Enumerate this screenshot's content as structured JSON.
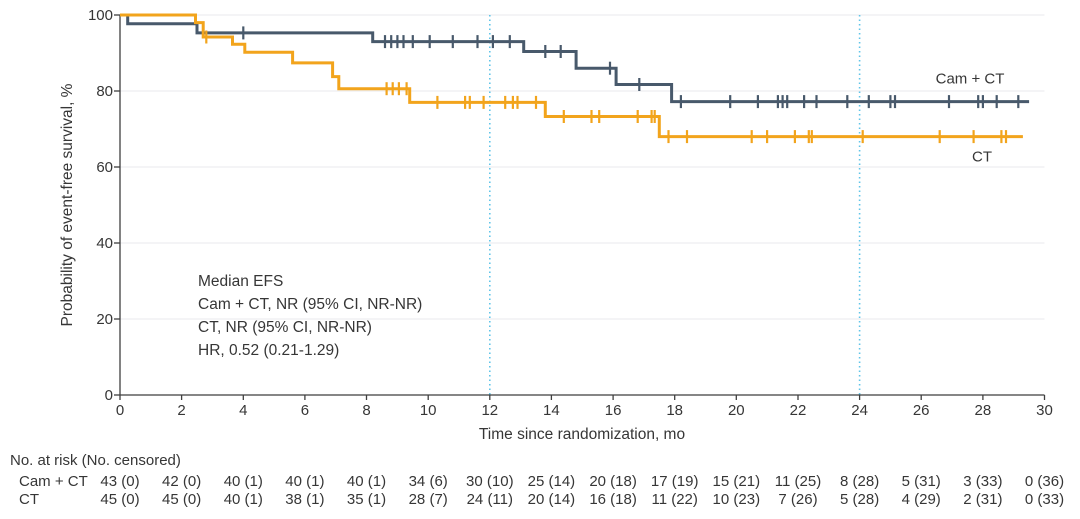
{
  "chart_data": {
    "type": "line",
    "subtype": "kaplan-meier-step",
    "title": "",
    "xlabel": "Time since randomization, mo",
    "ylabel": "Probability of event-free survival, %",
    "xlim": [
      0,
      30
    ],
    "ylim": [
      0,
      100
    ],
    "xticks": [
      0,
      2,
      4,
      6,
      8,
      10,
      12,
      14,
      16,
      18,
      20,
      22,
      24,
      26,
      28,
      30
    ],
    "yticks": [
      0,
      20,
      40,
      60,
      80,
      100
    ],
    "grid": "horizontal",
    "legend_position": "labels-at-line-ends",
    "reference_lines_x": [
      12,
      24
    ],
    "reference_line_color": "#5fc4e8",
    "annotation_lines": [
      "Median EFS",
      "Cam + CT, NR (95% CI, NR-NR)",
      "CT, NR (95% CI, NR-NR)",
      "HR, 0.52 (0.21-1.29)"
    ],
    "series": [
      {
        "name": "Cam + CT",
        "color": "#48596b",
        "steps": [
          [
            0,
            100
          ],
          [
            0.25,
            97.7
          ],
          [
            2.5,
            95.3
          ],
          [
            8.2,
            93
          ],
          [
            13.1,
            90.4
          ],
          [
            14.8,
            86
          ],
          [
            16.1,
            81.7
          ],
          [
            17.9,
            77.2
          ]
        ],
        "end_time": 29.5,
        "censor_times": [
          4,
          8.6,
          8.8,
          9.0,
          9.2,
          9.5,
          10.05,
          10.8,
          11.6,
          12.1,
          12.65,
          13.8,
          14.3,
          15.9,
          16.85,
          18.2,
          19.8,
          20.7,
          21.35,
          21.5,
          21.65,
          22.2,
          22.6,
          23.6,
          24.3,
          25.0,
          25.15,
          26.9,
          27.85,
          28.0,
          28.45,
          29.15
        ]
      },
      {
        "name": "CT",
        "color": "#f2a41c",
        "steps": [
          [
            0,
            100
          ],
          [
            2.45,
            98
          ],
          [
            2.7,
            94.2
          ],
          [
            3.65,
            92.3
          ],
          [
            4.05,
            90.2
          ],
          [
            5.6,
            87.4
          ],
          [
            6.9,
            83.8
          ],
          [
            7.1,
            80.6
          ],
          [
            9.4,
            77
          ],
          [
            13.8,
            73.3
          ],
          [
            17.5,
            68
          ]
        ],
        "end_time": 29.3,
        "censor_times": [
          2.8,
          8.65,
          8.85,
          9.05,
          9.3,
          10.3,
          11.2,
          11.35,
          11.8,
          12.5,
          12.75,
          12.9,
          13.5,
          14.4,
          15.3,
          15.55,
          16.8,
          17.25,
          17.35,
          17.8,
          18.4,
          20.5,
          21.0,
          21.9,
          22.35,
          22.45,
          24.1,
          26.6,
          27.7,
          28.6,
          28.75
        ]
      }
    ]
  },
  "risk_table": {
    "header": "No. at risk (No. censored)",
    "times": [
      0,
      2,
      4,
      6,
      8,
      10,
      12,
      14,
      16,
      18,
      20,
      22,
      24,
      26,
      28,
      30
    ],
    "rows": [
      {
        "label": "Cam + CT",
        "values": [
          "43 (0)",
          "42 (0)",
          "40 (1)",
          "40 (1)",
          "40 (1)",
          "34 (6)",
          "30 (10)",
          "25 (14)",
          "20 (18)",
          "17 (19)",
          "15 (21)",
          "11 (25)",
          "8 (28)",
          "5 (31)",
          "3 (33)",
          "0 (36)"
        ]
      },
      {
        "label": "CT",
        "values": [
          "45 (0)",
          "45 (0)",
          "40 (1)",
          "38 (1)",
          "35 (1)",
          "28 (7)",
          "24 (11)",
          "20 (14)",
          "16 (18)",
          "11 (22)",
          "10 (23)",
          "7 (26)",
          "5 (28)",
          "4 (29)",
          "2 (31)",
          "0 (33)"
        ]
      }
    ]
  }
}
